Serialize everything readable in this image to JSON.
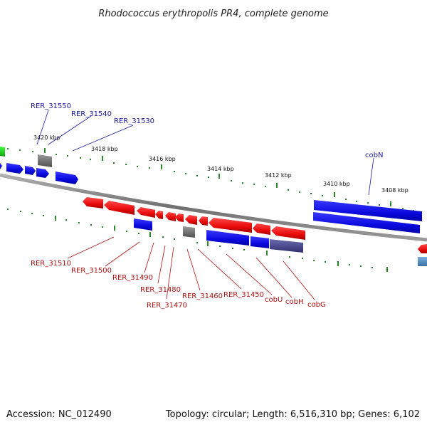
{
  "title": "Rhodococcus erythropolis PR4, complete genome",
  "footer": {
    "accession": "Accession: NC_012490",
    "summary": "Topology: circular; Length: 6,516,310 bp; Genes: 6,102"
  },
  "colors": {
    "forward": "#1010e0",
    "reverse": "#e01010",
    "other": "#707070",
    "label_forward": "#1a1a9e",
    "label_reverse": "#b01010",
    "ticks": "#2a8a2a",
    "backbone": "#888888"
  },
  "ticks": [
    {
      "label": "3420 kbp"
    },
    {
      "label": "3418 kbp"
    },
    {
      "label": "3416 kbp"
    },
    {
      "label": "3414 kbp"
    },
    {
      "label": "3412 kbp"
    },
    {
      "label": "3410 kbp"
    },
    {
      "label": "3408 kbp"
    }
  ],
  "top_labels": [
    "RER_31550",
    "RER_31540",
    "RER_31530",
    "cobN"
  ],
  "bottom_labels": [
    "RER_31510",
    "RER_31500",
    "RER_31490",
    "RER_31480",
    "RER_31470",
    "RER_31460",
    "RER_31450",
    "cobU",
    "cobH",
    "cobG"
  ]
}
